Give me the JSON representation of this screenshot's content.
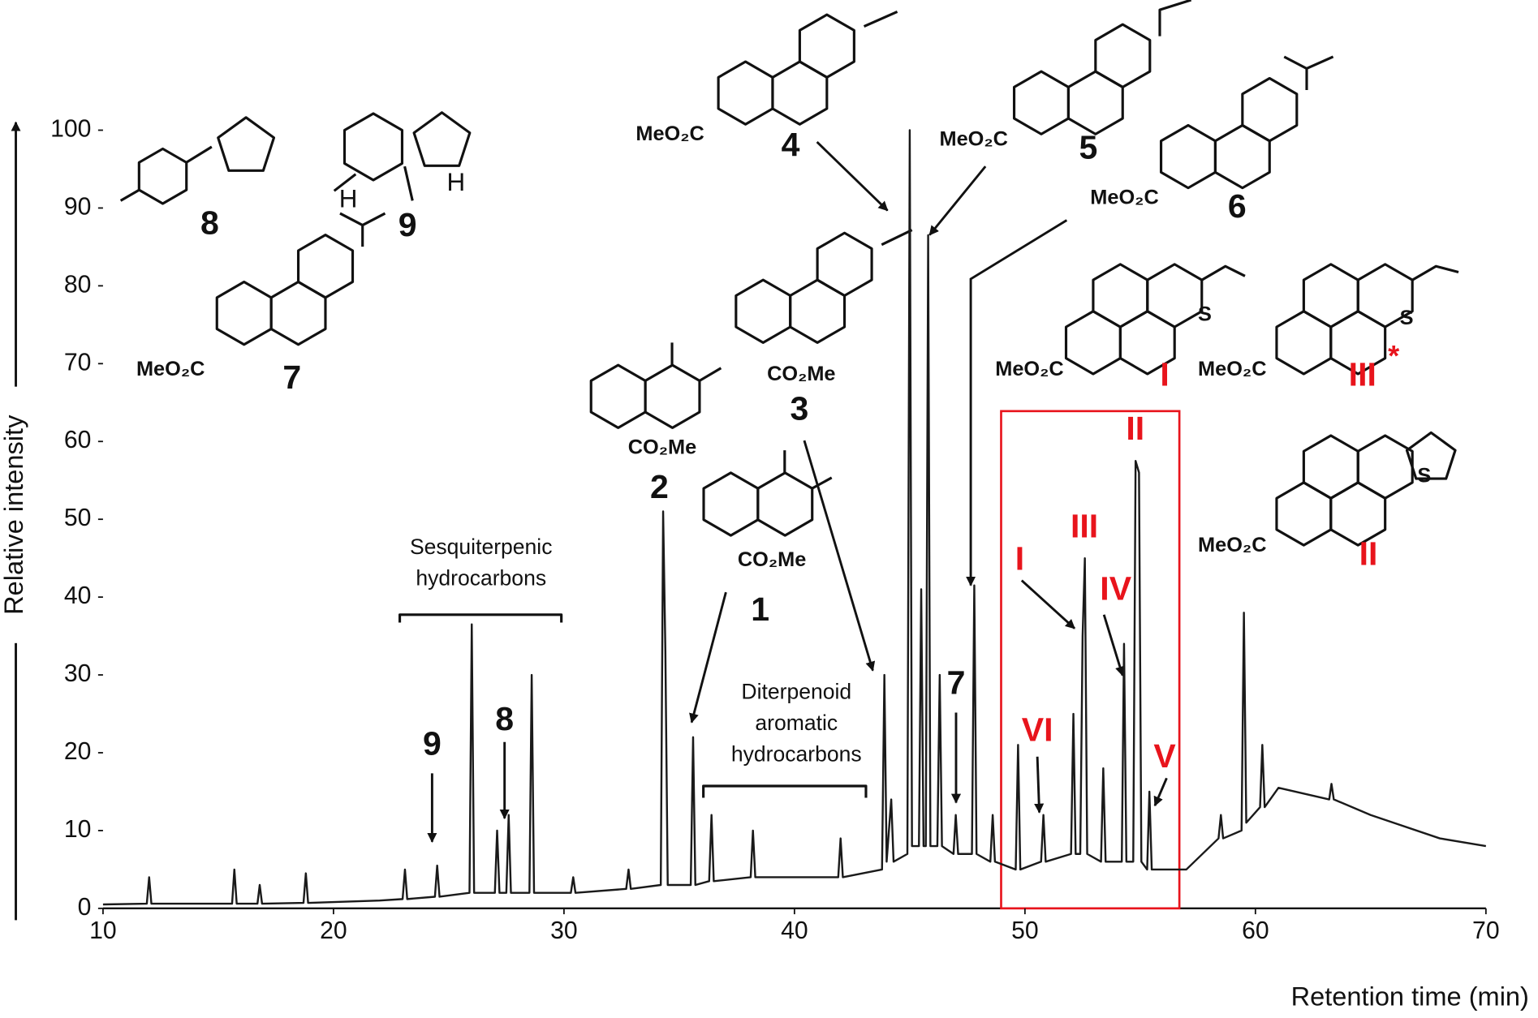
{
  "chart_data": {
    "type": "line",
    "xlabel": "Retention time (min)",
    "ylabel": "Relative intensity",
    "color": "#1a1a1a",
    "highlight_color": "#e8141c",
    "xlim": [
      10,
      70
    ],
    "ylim": [
      0,
      100
    ],
    "xticks": [
      10,
      20,
      30,
      40,
      50,
      60,
      70
    ],
    "yticks": [
      0,
      10,
      20,
      30,
      40,
      50,
      60,
      70,
      80,
      90,
      100
    ],
    "x": [
      10,
      11.9,
      12.0,
      12.1,
      15.6,
      15.7,
      15.8,
      16.7,
      16.8,
      16.9,
      18.7,
      18.8,
      18.9,
      22.0,
      23.0,
      23.1,
      23.2,
      24.4,
      24.5,
      24.6,
      25.9,
      26.0,
      26.1,
      27.0,
      27.1,
      27.2,
      27.5,
      27.6,
      27.7,
      28.5,
      28.6,
      28.7,
      30.3,
      30.4,
      30.5,
      32.7,
      32.8,
      32.9,
      34.2,
      34.3,
      34.4,
      34.5,
      35.5,
      35.6,
      35.7,
      36.3,
      36.4,
      36.5,
      38.1,
      38.2,
      38.3,
      41.9,
      42.0,
      42.1,
      43.8,
      43.9,
      44.0,
      44.2,
      44.3,
      44.9,
      45.0,
      45.1,
      45.4,
      45.5,
      45.6,
      45.7,
      45.8,
      45.9,
      46.2,
      46.3,
      46.4,
      46.9,
      47.0,
      47.1,
      47.7,
      47.8,
      47.9,
      48.5,
      48.6,
      48.7,
      49.6,
      49.7,
      49.8,
      50.7,
      50.8,
      50.9,
      52.0,
      52.1,
      52.2,
      52.4,
      52.5,
      52.6,
      52.7,
      53.3,
      53.4,
      53.5,
      54.2,
      54.3,
      54.4,
      54.7,
      54.8,
      54.95,
      55.05,
      55.3,
      55.4,
      55.5,
      57.0,
      58.4,
      58.5,
      58.6,
      59.4,
      59.5,
      59.6,
      60.2,
      60.3,
      60.4,
      61.0,
      63.2,
      63.3,
      63.4,
      65,
      68,
      70
    ],
    "values": [
      0.5,
      0.6,
      4,
      0.6,
      0.6,
      5,
      0.6,
      0.6,
      3,
      0.6,
      0.7,
      4.5,
      0.7,
      1,
      1.2,
      5,
      1.2,
      1.5,
      5.5,
      1.5,
      2,
      36.5,
      2,
      2,
      10,
      2,
      2,
      12,
      2,
      2,
      30,
      2,
      2,
      4,
      2,
      2.5,
      5,
      2.5,
      3,
      51,
      33,
      3,
      3,
      22,
      3,
      3.5,
      12,
      3.5,
      4,
      10,
      4,
      4,
      9,
      4,
      5,
      30,
      6,
      14,
      6,
      7,
      100,
      8,
      8,
      41,
      8,
      8,
      86.5,
      8,
      8,
      30,
      8,
      7,
      12,
      7,
      7,
      41.5,
      7,
      6,
      12,
      6,
      5,
      21,
      5,
      6,
      12,
      6,
      7,
      25,
      7,
      7,
      35,
      45,
      7,
      6,
      18,
      6,
      6,
      34,
      6,
      6,
      57.5,
      56,
      6,
      5,
      15,
      5,
      5,
      9,
      12,
      9,
      10,
      38,
      11,
      13,
      21,
      13,
      15.5,
      14,
      16,
      14,
      12,
      9,
      8
    ],
    "annotations": {
      "structure_labels": [
        "1",
        "2",
        "3",
        "4",
        "5",
        "6",
        "7",
        "8",
        "9",
        "I",
        "III",
        "II"
      ],
      "peak_labels": [
        "9",
        "8",
        "7",
        "VI",
        "I",
        "III",
        "IV",
        "II",
        "V"
      ],
      "structure_texts": [
        "MeO₂C",
        "MeO₂C",
        "MeO₂C",
        "MeO₂C",
        "CO₂Me",
        "CO₂Me",
        "CO₂Me",
        "MeO₂C",
        "MeO₂C",
        "MeO₂C",
        "S",
        "S",
        "S",
        "H",
        "H",
        "*"
      ],
      "groups": [
        [
          "Sesquiterpenic",
          "hydrocarbons"
        ],
        [
          "Diterpenoid",
          "aromatic",
          "hydrocarbons"
        ]
      ]
    }
  }
}
